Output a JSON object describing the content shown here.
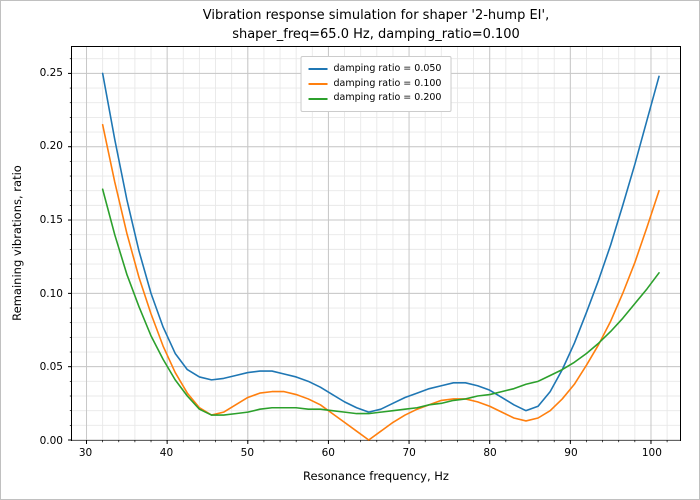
{
  "chart_data": {
    "type": "line",
    "title_lines": [
      "Vibration response simulation for shaper '2-hump EI',",
      "shaper_freq=65.0 Hz, damping_ratio=0.100"
    ],
    "xlabel": "Resonance frequency, Hz",
    "ylabel": "Remaining vibrations, ratio",
    "xlim": [
      28.2,
      103.6
    ],
    "ylim": [
      0,
      0.268
    ],
    "xticks": [
      30,
      40,
      50,
      60,
      70,
      80,
      90,
      100
    ],
    "yticks": [
      0,
      0.05,
      0.1,
      0.15,
      0.2,
      0.25
    ],
    "ytick_labels": [
      "0.00",
      "0.05",
      "0.10",
      "0.15",
      "0.20",
      "0.25"
    ],
    "minor_x_step": 2,
    "minor_y_step": 0.01,
    "grid": true,
    "legend_position": "upper center",
    "x": [
      32,
      33.5,
      35,
      36.5,
      38,
      39.5,
      41,
      42.5,
      44,
      45.5,
      47,
      48.5,
      50,
      51.5,
      53,
      54.5,
      56,
      57.5,
      59,
      60.5,
      62,
      63.5,
      65,
      66.5,
      68,
      69.5,
      71,
      72.5,
      74,
      75.5,
      77,
      78.5,
      80,
      81.5,
      83,
      84.5,
      86,
      87.5,
      89,
      90.5,
      92,
      93.5,
      95,
      96.5,
      98,
      99.5,
      101
    ],
    "series": [
      {
        "name": "damping ratio = 0.050",
        "color": "#1f77b4",
        "values": [
          0.25,
          0.205,
          0.164,
          0.129,
          0.1,
          0.077,
          0.059,
          0.048,
          0.043,
          0.041,
          0.042,
          0.044,
          0.046,
          0.047,
          0.047,
          0.045,
          0.043,
          0.04,
          0.036,
          0.031,
          0.026,
          0.022,
          0.019,
          0.021,
          0.025,
          0.029,
          0.032,
          0.035,
          0.037,
          0.039,
          0.039,
          0.037,
          0.034,
          0.029,
          0.024,
          0.02,
          0.023,
          0.033,
          0.048,
          0.066,
          0.087,
          0.109,
          0.133,
          0.16,
          0.188,
          0.218,
          0.248
        ]
      },
      {
        "name": "damping ratio = 0.100",
        "color": "#ff7f0e",
        "values": [
          0.215,
          0.176,
          0.141,
          0.111,
          0.086,
          0.064,
          0.046,
          0.032,
          0.022,
          0.017,
          0.019,
          0.024,
          0.029,
          0.032,
          0.033,
          0.033,
          0.031,
          0.028,
          0.024,
          0.018,
          0.012,
          0.006,
          0.0,
          0.006,
          0.012,
          0.017,
          0.021,
          0.024,
          0.027,
          0.028,
          0.028,
          0.026,
          0.023,
          0.019,
          0.015,
          0.013,
          0.015,
          0.02,
          0.028,
          0.038,
          0.051,
          0.065,
          0.081,
          0.1,
          0.121,
          0.145,
          0.17
        ]
      },
      {
        "name": "damping ratio = 0.200",
        "color": "#2ca02c",
        "values": [
          0.171,
          0.14,
          0.113,
          0.091,
          0.071,
          0.055,
          0.041,
          0.03,
          0.021,
          0.017,
          0.017,
          0.018,
          0.019,
          0.021,
          0.022,
          0.022,
          0.022,
          0.021,
          0.021,
          0.02,
          0.019,
          0.018,
          0.018,
          0.019,
          0.02,
          0.021,
          0.022,
          0.024,
          0.025,
          0.027,
          0.028,
          0.03,
          0.031,
          0.033,
          0.035,
          0.038,
          0.04,
          0.044,
          0.048,
          0.053,
          0.059,
          0.066,
          0.074,
          0.083,
          0.093,
          0.103,
          0.114
        ]
      }
    ]
  }
}
